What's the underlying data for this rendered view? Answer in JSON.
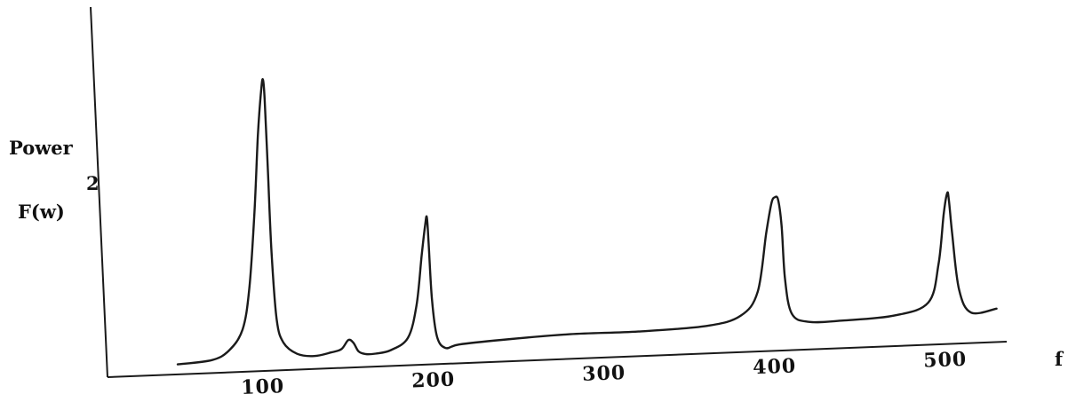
{
  "chart_data": {
    "type": "line",
    "title": "",
    "ylabel_lines": [
      "Power",
      "F(w)"
    ],
    "ylabel_fragment": "2",
    "xlabel": "f",
    "x_ticks": [
      100,
      200,
      300,
      400,
      500
    ],
    "xlim": [
      0,
      540
    ],
    "ylim": [
      0,
      1.0
    ],
    "grid": false,
    "legend": "none",
    "line_color": "#1a1a1a",
    "series": [
      {
        "x": [
          50,
          70,
          80,
          88,
          92,
          95,
          97,
          99,
          100,
          101,
          103,
          105,
          108,
          112,
          120,
          130,
          140,
          146,
          150,
          153,
          156,
          160,
          166,
          175,
          185,
          190,
          193,
          195,
          196,
          197,
          199,
          202,
          207,
          215,
          240,
          280,
          320,
          360,
          380,
          390,
          395,
          398,
          400,
          402,
          404,
          406,
          410,
          420,
          440,
          470,
          490,
          496,
          499,
          501,
          502,
          504,
          508,
          515,
          530
        ],
        "y": [
          0.01,
          0.02,
          0.05,
          0.12,
          0.26,
          0.52,
          0.78,
          0.94,
          0.97,
          0.9,
          0.64,
          0.38,
          0.15,
          0.07,
          0.03,
          0.02,
          0.03,
          0.04,
          0.07,
          0.06,
          0.03,
          0.02,
          0.02,
          0.03,
          0.07,
          0.18,
          0.35,
          0.45,
          0.48,
          0.4,
          0.2,
          0.07,
          0.03,
          0.04,
          0.05,
          0.06,
          0.06,
          0.07,
          0.1,
          0.18,
          0.38,
          0.48,
          0.5,
          0.49,
          0.4,
          0.22,
          0.1,
          0.07,
          0.07,
          0.08,
          0.12,
          0.25,
          0.42,
          0.49,
          0.47,
          0.35,
          0.16,
          0.08,
          0.09
        ]
      }
    ]
  }
}
